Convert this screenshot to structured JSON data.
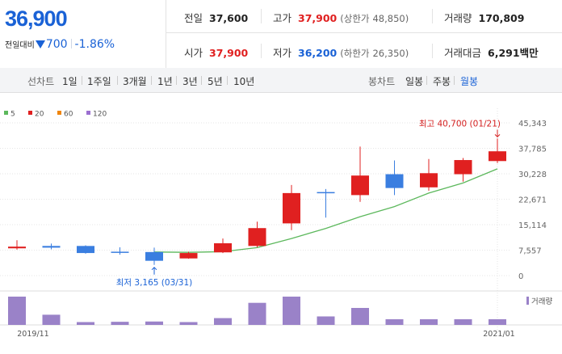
{
  "price": {
    "current": "36,900",
    "change_label": "전일대비",
    "change": "700",
    "change_pct": "-1.86%"
  },
  "stats": {
    "prev_close": {
      "label": "전일",
      "value": "37,600"
    },
    "high": {
      "label": "고가",
      "value": "37,900",
      "limit_label": "(상한가",
      "limit": "48,850)"
    },
    "volume": {
      "label": "거래량",
      "value": "170,809"
    },
    "open": {
      "label": "시가",
      "value": "37,900"
    },
    "low": {
      "label": "저가",
      "value": "36,200",
      "limit_label": "(하한가",
      "limit": "26,350)"
    },
    "amount": {
      "label": "거래대금",
      "value": "6,291",
      "unit": "백만"
    }
  },
  "tabs": {
    "line_label": "선차트",
    "periods": [
      "1일",
      "1주일",
      "3개월",
      "1년",
      "3년",
      "5년",
      "10년"
    ],
    "candle_label": "봉차트",
    "candles": [
      "일봉",
      "주봉",
      "월봉"
    ],
    "active_candle": "월봉"
  },
  "colors": {
    "up": "#e02020",
    "down": "#3a7ee0",
    "ma5": "#5cb85c",
    "ma20": "#e02020",
    "ma60": "#f0850a",
    "ma120": "#9b6fd0",
    "volume": "#9a82c8"
  },
  "chart_data": {
    "type": "candlestick",
    "legend": [
      {
        "name": "5",
        "color": "#5cb85c"
      },
      {
        "name": "20",
        "color": "#e02020"
      },
      {
        "name": "60",
        "color": "#f0850a"
      },
      {
        "name": "120",
        "color": "#9b6fd0"
      }
    ],
    "y_ticks": [
      "45,343",
      "37,785",
      "30,228",
      "22,671",
      "15,114",
      "7,557",
      "0"
    ],
    "ylim": [
      0,
      45343
    ],
    "x_labels": [
      "2019/11",
      "2021/01"
    ],
    "candles": [
      {
        "o": 8100,
        "c": 8600,
        "h": 10500,
        "l": 7700
      },
      {
        "o": 8800,
        "c": 8300,
        "h": 9500,
        "l": 7800
      },
      {
        "o": 8800,
        "c": 6700,
        "h": 9000,
        "l": 6500
      },
      {
        "o": 7100,
        "c": 6900,
        "h": 8400,
        "l": 6200
      },
      {
        "o": 7000,
        "c": 4400,
        "h": 8300,
        "l": 3165
      },
      {
        "o": 5100,
        "c": 6700,
        "h": 7100,
        "l": 5000
      },
      {
        "o": 6900,
        "c": 9600,
        "h": 11000,
        "l": 6700
      },
      {
        "o": 8800,
        "c": 14100,
        "h": 16000,
        "l": 8400
      },
      {
        "o": 15500,
        "c": 24500,
        "h": 26900,
        "l": 13500
      },
      {
        "o": 24800,
        "c": 24600,
        "h": 25700,
        "l": 17200
      },
      {
        "o": 23900,
        "c": 29700,
        "h": 38300,
        "l": 21900
      },
      {
        "o": 30100,
        "c": 26000,
        "h": 34200,
        "l": 23900
      },
      {
        "o": 26200,
        "c": 30400,
        "h": 34600,
        "l": 25200
      },
      {
        "o": 30100,
        "c": 34300,
        "h": 34900,
        "l": 27900
      },
      {
        "o": 34000,
        "c": 36900,
        "h": 40700,
        "l": 33400
      }
    ],
    "ma5": [
      null,
      null,
      null,
      null,
      7000,
      6900,
      7100,
      8300,
      11000,
      14000,
      17500,
      20500,
      24500,
      27500,
      31700
    ],
    "volume": [
      100,
      36,
      10,
      11,
      12,
      10,
      24,
      78,
      100,
      30,
      60,
      20,
      20,
      20,
      20
    ],
    "volume_label": "거래량",
    "annotations": {
      "high": "최고 40,700 (01/21)",
      "low": "최저 3,165 (03/31)"
    }
  }
}
